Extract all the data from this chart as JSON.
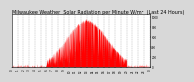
{
  "title": "Milwaukee Weather  Solar Radiation per Minute W/m²  (Last 24 Hours)",
  "title_fontsize": 3.5,
  "bg_color": "#d8d8d8",
  "plot_bg_color": "#ffffff",
  "bar_color": "#ff0000",
  "grid_color": "#888888",
  "x_tick_labels": [
    "0",
    "1",
    "2",
    "3",
    "4",
    "5",
    "6",
    "7",
    "8",
    "9",
    "10",
    "11",
    "12",
    "13",
    "14",
    "15",
    "16",
    "17",
    "18",
    "19",
    "20",
    "21",
    "22",
    "23",
    "0"
  ],
  "y_tick_labels": [
    "0",
    "200",
    "400",
    "600",
    "800",
    "1000"
  ],
  "ylim": [
    0,
    1050
  ],
  "xlim": [
    0,
    1440
  ],
  "num_points": 1440,
  "peak_hour": 13.0,
  "peak_value": 920,
  "sigma_hours": 3.5
}
